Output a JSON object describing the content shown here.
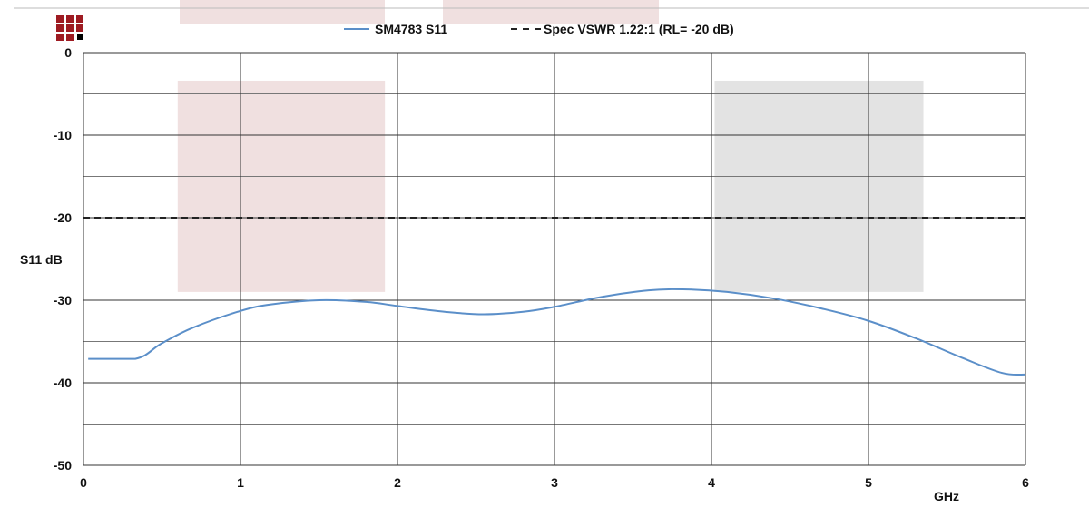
{
  "chart_data": {
    "type": "line",
    "title": "",
    "xlabel": "GHz",
    "ylabel": "S11 dB",
    "xlim": [
      0,
      6
    ],
    "ylim": [
      -50,
      0
    ],
    "x_ticks": [
      0,
      1,
      2,
      3,
      4,
      5,
      6
    ],
    "y_ticks": [
      0,
      -10,
      -20,
      -30,
      -40,
      -50
    ],
    "y_minor_gridlines": [
      -5,
      -15,
      -25,
      -35,
      -45
    ],
    "grid": true,
    "legend_position": "top-center",
    "series": [
      {
        "name": "SM4783 S11",
        "style": "solid",
        "color": "#5b8fc9",
        "x": [
          0.03,
          0.33,
          0.5,
          0.7,
          1.0,
          1.2,
          1.5,
          1.8,
          2.0,
          2.3,
          2.55,
          2.8,
          3.0,
          3.3,
          3.6,
          3.85,
          4.1,
          4.4,
          4.7,
          5.0,
          5.3,
          5.6,
          5.85,
          6.0
        ],
        "y": [
          -37.1,
          -37.1,
          -35.2,
          -33.3,
          -31.3,
          -30.5,
          -30.0,
          -30.2,
          -30.7,
          -31.4,
          -31.7,
          -31.4,
          -30.8,
          -29.6,
          -28.8,
          -28.7,
          -29.0,
          -29.8,
          -31.0,
          -32.5,
          -34.6,
          -37.0,
          -38.8,
          -39.0
        ]
      },
      {
        "name": "Spec VSWR 1.22:1 (RL= -20 dB)",
        "style": "dashed",
        "color": "#222222",
        "x": [
          0,
          6
        ],
        "y": [
          -20,
          -20
        ]
      }
    ],
    "shaded_regions": [
      {
        "x": [
          0.6,
          1.92
        ],
        "y": [
          -3.4,
          -29.0
        ],
        "color": "#f0e0e0"
      },
      {
        "x": [
          4.02,
          5.35
        ],
        "y": [
          -3.4,
          -29.0
        ],
        "color": "#e3e3e3"
      }
    ]
  },
  "logo": {
    "name": "company-logo",
    "colors": [
      "#9e1b22",
      "#000000"
    ]
  }
}
